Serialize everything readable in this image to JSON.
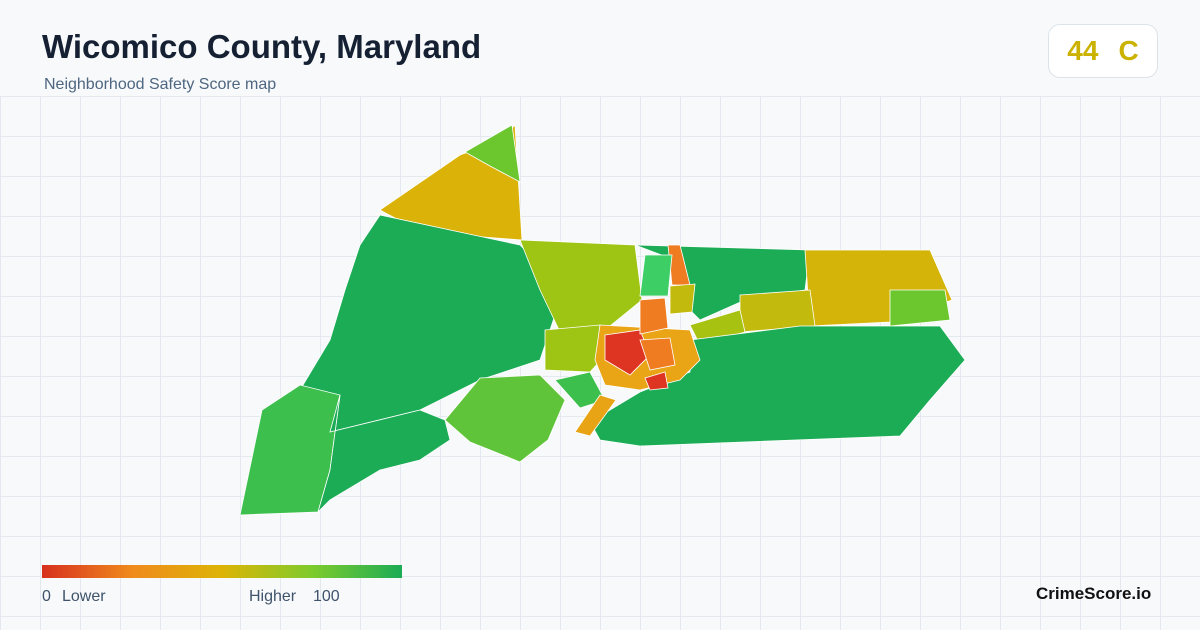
{
  "header": {
    "title": "Wicomico County, Maryland",
    "subtitle": "Neighborhood Safety Score map"
  },
  "score": {
    "value": "44",
    "grade": "C"
  },
  "legend": {
    "min": "0",
    "min_label": "Lower",
    "max_label": "Higher",
    "max": "100"
  },
  "brand": "CrimeScore.io"
}
